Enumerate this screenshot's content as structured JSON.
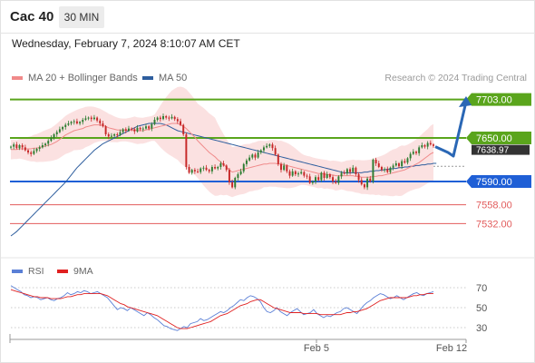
{
  "header": {
    "title": "Cac 40",
    "timeframe": "30 MIN"
  },
  "timestamp": "Wednesday, February 7, 2024 8:10:07 AM CET",
  "legend": {
    "ma20": {
      "label": "MA 20 + Bollinger Bands",
      "color": "#f08a8a"
    },
    "ma50": {
      "label": "MA 50",
      "color": "#2e5e9e"
    }
  },
  "credit": "Research © 2024 Trading Central",
  "rsi_legend": {
    "rsi": {
      "label": "RSI",
      "color": "#5a7fd6"
    },
    "ma9": {
      "label": "9MA",
      "color": "#e02020"
    }
  },
  "colors": {
    "up": "#2e7d32",
    "down": "#c62828",
    "resistance": "#5aa51c",
    "pivot": "#1f5fd6",
    "support": "#e25c5c",
    "arrow": "#2a67b5",
    "band": "#fbdede"
  },
  "chart_data": [
    {
      "type": "candlestick",
      "price_range": [
        7505,
        7720
      ],
      "levels": [
        {
          "value": 7703.0,
          "label": "7703.00",
          "kind": "resistance"
        },
        {
          "value": 7650.0,
          "label": "7650.00",
          "kind": "resistance"
        },
        {
          "value": 7590.0,
          "label": "7590.00",
          "kind": "pivot"
        },
        {
          "value": 7558.0,
          "label": "7558.00",
          "kind": "support"
        },
        {
          "value": 7532.0,
          "label": "7532.00",
          "kind": "support"
        }
      ],
      "last_price_label": "7638.97",
      "x_labels": [
        "Feb 5",
        "Feb 12"
      ],
      "close": [
        7638,
        7641,
        7636,
        7640,
        7637,
        7633,
        7630,
        7628,
        7632,
        7635,
        7637,
        7640,
        7642,
        7646,
        7650,
        7655,
        7658,
        7662,
        7665,
        7668,
        7670,
        7672,
        7673,
        7670,
        7672,
        7675,
        7677,
        7678,
        7676,
        7678,
        7674,
        7670,
        7666,
        7655,
        7652,
        7653,
        7655,
        7654,
        7658,
        7662,
        7660,
        7663,
        7662,
        7659,
        7664,
        7662,
        7663,
        7666,
        7663,
        7669,
        7675,
        7678,
        7676,
        7680,
        7678,
        7677,
        7679,
        7676,
        7673,
        7668,
        7655,
        7610,
        7602,
        7606,
        7604,
        7603,
        7608,
        7609,
        7606,
        7604,
        7610,
        7608,
        7610,
        7615,
        7612,
        7606,
        7589,
        7582,
        7595,
        7600,
        7604,
        7614,
        7619,
        7623,
        7627,
        7623,
        7630,
        7633,
        7637,
        7639,
        7641,
        7636,
        7627,
        7614,
        7606,
        7612,
        7604,
        7598,
        7604,
        7600,
        7601,
        7603,
        7598,
        7597,
        7588,
        7590,
        7596,
        7592,
        7602,
        7595,
        7600,
        7596,
        7590,
        7588,
        7597,
        7602,
        7601,
        7607,
        7603,
        7609,
        7600,
        7592,
        7586,
        7582,
        7594,
        7590,
        7620,
        7615,
        7610,
        7606,
        7607,
        7603,
        7609,
        7612,
        7615,
        7611,
        7618,
        7616,
        7622,
        7628,
        7631,
        7629,
        7637,
        7640,
        7638,
        7643,
        7641,
        7639
      ],
      "ma20_approx": [
        7634,
        7634,
        7634,
        7635,
        7635,
        7635,
        7635,
        7635,
        7636,
        7636,
        7637,
        7638,
        7639,
        7640,
        7641,
        7643,
        7645,
        7648,
        7651,
        7654,
        7656,
        7658,
        7660,
        7661,
        7662,
        7663,
        7665,
        7666,
        7667,
        7668,
        7668,
        7668,
        7667,
        7666,
        7664,
        7663,
        7662,
        7661,
        7661,
        7661,
        7661,
        7661,
        7661,
        7661,
        7660,
        7660,
        7660,
        7661,
        7662,
        7663,
        7664,
        7665,
        7666,
        7667,
        7668,
        7669,
        7670,
        7670,
        7670,
        7668,
        7666,
        7663,
        7659,
        7655,
        7651,
        7646,
        7642,
        7638,
        7634,
        7630,
        7627,
        7624,
        7620,
        7617,
        7613,
        7610,
        7606,
        7603,
        7604,
        7605,
        7606,
        7607,
        7608,
        7609,
        7610,
        7611,
        7612,
        7613,
        7614,
        7614,
        7615,
        7615,
        7615,
        7614,
        7614,
        7613,
        7612,
        7611,
        7610,
        7609,
        7608,
        7607,
        7606,
        7605,
        7604,
        7603,
        7602,
        7601,
        7601,
        7600,
        7600,
        7599,
        7599,
        7598,
        7598,
        7598,
        7598,
        7598,
        7598,
        7598,
        7597,
        7597,
        7596,
        7596,
        7596,
        7596,
        7597,
        7597,
        7598,
        7598,
        7599,
        7600,
        7601,
        7602,
        7603,
        7604,
        7605,
        7606,
        7608,
        7610,
        7612,
        7614,
        7616,
        7619,
        7622,
        7625,
        7628,
        7630
      ],
      "ma50_approx": [
        7515,
        7518,
        7521,
        7525,
        7529,
        7533,
        7537,
        7541,
        7545,
        7549,
        7553,
        7557,
        7561,
        7565,
        7569,
        7573,
        7577,
        7581,
        7585,
        7589,
        7594,
        7599,
        7604,
        7609,
        7613,
        7617,
        7621,
        7625,
        7629,
        7633,
        7636,
        7639,
        7642,
        7644,
        7646,
        7648,
        7650,
        7652,
        7654,
        7656,
        7658,
        7660,
        7662,
        7664,
        7666,
        7667,
        7668,
        7669,
        7670,
        7670,
        7670,
        7670,
        7670,
        7669,
        7668,
        7666,
        7664,
        7662,
        7660,
        7659,
        7658,
        7657,
        7656,
        7655,
        7654,
        7653,
        7652,
        7651,
        7650,
        7649,
        7648,
        7647,
        7646,
        7645,
        7644,
        7643,
        7642,
        7641,
        7640,
        7639,
        7638,
        7637,
        7636,
        7635,
        7634,
        7633,
        7632,
        7631,
        7630,
        7629,
        7628,
        7627,
        7626,
        7625,
        7624,
        7623,
        7622,
        7621,
        7620,
        7619,
        7618,
        7617,
        7616,
        7615,
        7614,
        7613,
        7612,
        7611,
        7610,
        7609,
        7608,
        7607,
        7606,
        7605,
        7604,
        7603,
        7602,
        7602,
        7602,
        7602,
        7602,
        7602,
        7602,
        7603,
        7603,
        7604,
        7604,
        7605,
        7605,
        7606,
        7606,
        7607,
        7607,
        7608,
        7608,
        7609,
        7609,
        7610,
        7610,
        7611,
        7611,
        7612,
        7612,
        7613,
        7613,
        7614,
        7614,
        7615,
        7615
      ],
      "forecast": {
        "path": [
          7638,
          7630,
          7625,
          7700
        ],
        "target": 7703
      }
    },
    {
      "type": "line",
      "title": "RSI",
      "y_range": [
        20,
        80
      ],
      "y_ticks": [
        70,
        50,
        30
      ],
      "rsi_approx": [
        72,
        70,
        68,
        66,
        63,
        62,
        60,
        61,
        60,
        58,
        59,
        60,
        58,
        57,
        59,
        60,
        62,
        65,
        63,
        64,
        66,
        65,
        67,
        66,
        64,
        65,
        66,
        64,
        62,
        60,
        56,
        52,
        48,
        50,
        49,
        47,
        50,
        48,
        46,
        44,
        42,
        45,
        43,
        40,
        38,
        35,
        32,
        31,
        29,
        28,
        27,
        29,
        31,
        30,
        34,
        35,
        36,
        39,
        37,
        38,
        40,
        42,
        44,
        46,
        45,
        47,
        50,
        52,
        55,
        58,
        57,
        60,
        62,
        61,
        59,
        56,
        50,
        46,
        45,
        47,
        50,
        46,
        44,
        42,
        45,
        47,
        49,
        46,
        43,
        44,
        45,
        48,
        44,
        42,
        40,
        42,
        41,
        43,
        45,
        46,
        49,
        50,
        48,
        46,
        44,
        48,
        52,
        55,
        57,
        60,
        62,
        64,
        63,
        61,
        59,
        60,
        62,
        60,
        58,
        60,
        62,
        64,
        65,
        63,
        62,
        64,
        65,
        66
      ],
      "ma9_approx": [
        68,
        67,
        66,
        65,
        64,
        63,
        62,
        61,
        61,
        60,
        60,
        60,
        59,
        59,
        59,
        59,
        60,
        61,
        61,
        62,
        63,
        63,
        64,
        64,
        64,
        64,
        64,
        64,
        63,
        62,
        60,
        58,
        56,
        54,
        53,
        51,
        50,
        49,
        48,
        47,
        46,
        45,
        44,
        43,
        42,
        40,
        38,
        36,
        34,
        32,
        30,
        29,
        29,
        29,
        30,
        31,
        32,
        33,
        34,
        35,
        36,
        38,
        40,
        42,
        43,
        44,
        46,
        48,
        50,
        52,
        53,
        54,
        56,
        57,
        58,
        58,
        56,
        54,
        52,
        50,
        49,
        48,
        47,
        46,
        45,
        45,
        45,
        45,
        44,
        44,
        44,
        44,
        44,
        43,
        43,
        43,
        43,
        43,
        43,
        43,
        44,
        45,
        45,
        46,
        46,
        47,
        48,
        49,
        51,
        53,
        55,
        57,
        58,
        59,
        60,
        60,
        60,
        60,
        60,
        60,
        61,
        62,
        62,
        63,
        63,
        64,
        64,
        64
      ]
    }
  ]
}
